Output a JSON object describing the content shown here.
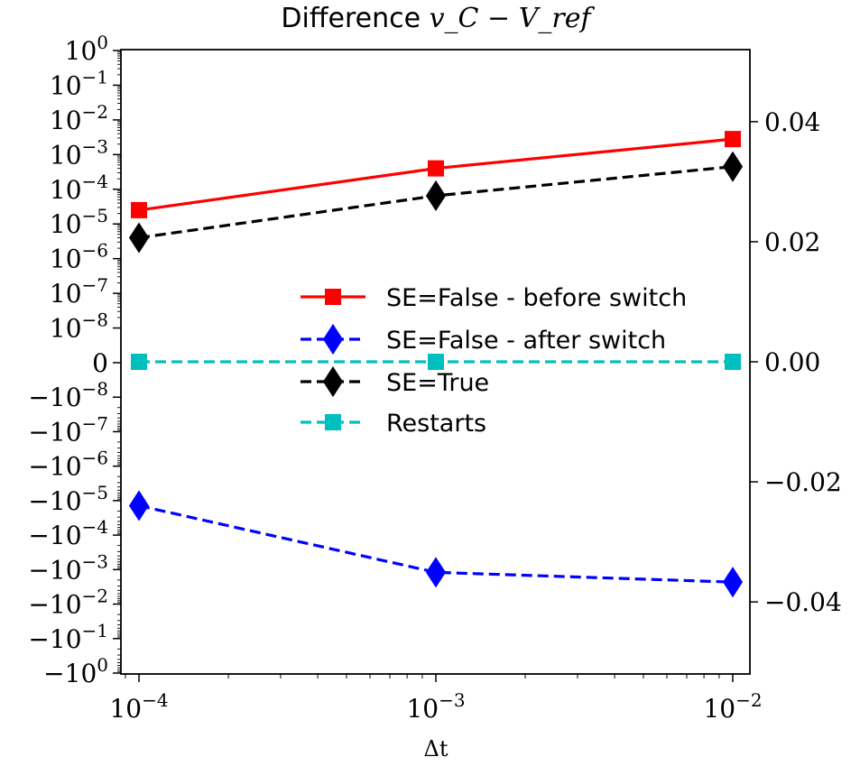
{
  "chart_data": {
    "type": "line",
    "title": {
      "prefix": "Difference ",
      "math": "v_C − V_ref"
    },
    "xlabel": "Δt",
    "x_scale": "log",
    "x": [
      0.0001,
      0.001,
      0.01
    ],
    "xticks": [
      0.0001,
      0.001,
      0.01
    ],
    "xtick_labels": [
      {
        "base": "10",
        "exp": "−4"
      },
      {
        "base": "10",
        "exp": "−3"
      },
      {
        "base": "10",
        "exp": "−2"
      }
    ],
    "y_scale": "symlog",
    "left_ytick_labels": [
      {
        "base": "10",
        "exp": "0"
      },
      {
        "base": "10",
        "exp": "−1"
      },
      {
        "base": "10",
        "exp": "−2"
      },
      {
        "base": "10",
        "exp": "−3"
      },
      {
        "base": "10",
        "exp": "−4"
      },
      {
        "base": "10",
        "exp": "−5"
      },
      {
        "base": "10",
        "exp": "−6"
      },
      {
        "base": "10",
        "exp": "−7"
      },
      {
        "base": "10",
        "exp": "−8"
      },
      {
        "base": "0",
        "exp": ""
      },
      {
        "base": "−10",
        "exp": "−8"
      },
      {
        "base": "−10",
        "exp": "−7"
      },
      {
        "base": "−10",
        "exp": "−6"
      },
      {
        "base": "−10",
        "exp": "−5"
      },
      {
        "base": "−10",
        "exp": "−4"
      },
      {
        "base": "−10",
        "exp": "−3"
      },
      {
        "base": "−10",
        "exp": "−2"
      },
      {
        "base": "−10",
        "exp": "−1"
      },
      {
        "base": "−10",
        "exp": "0"
      }
    ],
    "right_yticks": [
      0.04,
      0.02,
      0.0,
      -0.02,
      -0.04
    ],
    "right_ytick_labels": [
      "0.04",
      "0.02",
      "0.00",
      "−0.02",
      "−0.04"
    ],
    "right_ylim": [
      -0.052,
      0.052
    ],
    "series": [
      {
        "name": "SE=False - before switch",
        "axis": "left",
        "color": "#ff0000",
        "dash": "solid",
        "marker": "square",
        "values": [
          2.5e-05,
          0.0004,
          0.0028
        ]
      },
      {
        "name": "SE=False - after switch",
        "axis": "left",
        "color": "#0000ff",
        "dash": "dashed",
        "marker": "diamond",
        "values": [
          -1.4e-05,
          -0.0012,
          -0.0023
        ]
      },
      {
        "name": "SE=True",
        "axis": "left",
        "color": "#000000",
        "dash": "dashed",
        "marker": "diamond",
        "values": [
          4e-06,
          6.5e-05,
          0.00045
        ]
      },
      {
        "name": "Restarts",
        "axis": "right",
        "color": "#00bfbf",
        "dash": "dashed",
        "marker": "square",
        "values": [
          0.0,
          0.0,
          0.0
        ]
      }
    ],
    "legend": {
      "placement": "center-right"
    },
    "grid": false
  }
}
